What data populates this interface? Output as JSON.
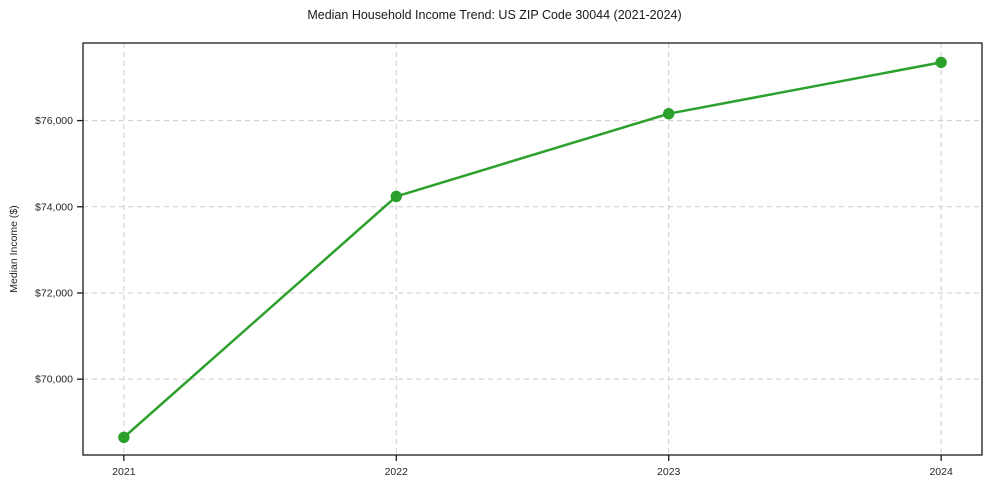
{
  "title": "Median Household Income Trend: US ZIP Code 30044 (2021-2024)",
  "chart_data": {
    "type": "line",
    "title": "Median Household Income Trend: US ZIP Code 30044 (2021-2024)",
    "xlabel": "",
    "ylabel": "Median Income ($)",
    "x": [
      2021,
      2022,
      2023,
      2024
    ],
    "values": [
      68650,
      74240,
      76160,
      77350
    ],
    "series_name": "Median Household Income",
    "xlim": [
      2020.85,
      2024.15
    ],
    "ylim": [
      68240,
      77800
    ],
    "xticks": [
      2021,
      2022,
      2023,
      2024
    ],
    "xtick_labels": [
      "2021",
      "2022",
      "2023",
      "2024"
    ],
    "yticks": [
      70000,
      72000,
      74000,
      76000
    ],
    "ytick_labels": [
      "$70,000",
      "$72,000",
      "$74,000",
      "$76,000"
    ],
    "grid": true,
    "grid_style": "dashed",
    "legend": "none",
    "line_color": "#2ca02c",
    "grid_color": "#cccccc",
    "spine_color": "#1a1a1a",
    "marker": "circle"
  }
}
